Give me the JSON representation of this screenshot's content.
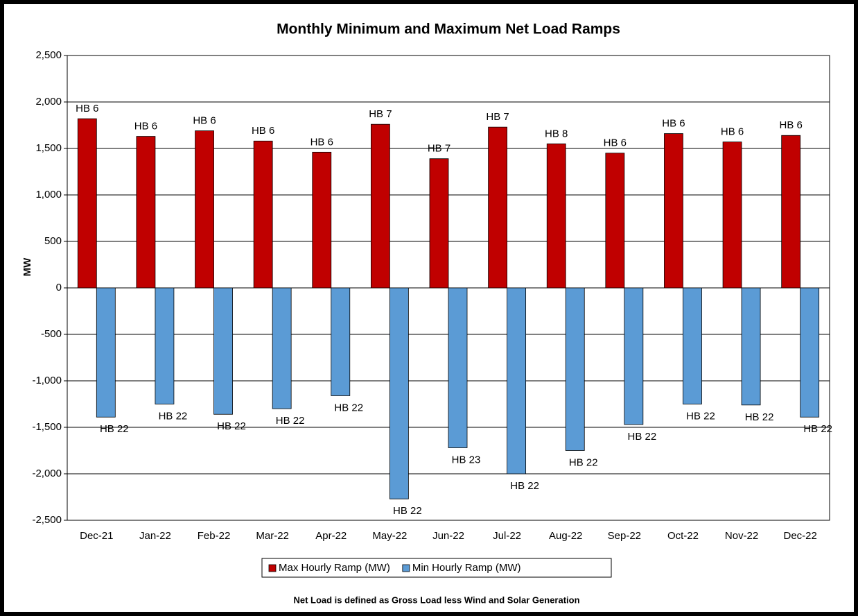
{
  "chart_data": {
    "type": "bar",
    "title": "Monthly Minimum and Maximum Net Load Ramps",
    "y_label": "MW",
    "footnote": "Net Load is defined as Gross Load less Wind and Solar Generation",
    "categories": [
      "Dec-21",
      "Jan-22",
      "Feb-22",
      "Mar-22",
      "Apr-22",
      "May-22",
      "Jun-22",
      "Jul-22",
      "Aug-22",
      "Sep-22",
      "Oct-22",
      "Nov-22",
      "Dec-22"
    ],
    "series": [
      {
        "name": "Max Hourly Ramp (MW)",
        "color": "#c00000",
        "values": [
          1820,
          1630,
          1690,
          1580,
          1460,
          1760,
          1390,
          1730,
          1550,
          1450,
          1660,
          1570,
          1640
        ],
        "annotations": [
          "HB 6",
          "HB 6",
          "HB 6",
          "HB 6",
          "HB 6",
          "HB 7",
          "HB 7",
          "HB 7",
          "HB 8",
          "HB 6",
          "HB 6",
          "HB 6",
          "HB 6"
        ]
      },
      {
        "name": "Min Hourly Ramp (MW)",
        "color": "#5b9bd5",
        "values": [
          -1390,
          -1250,
          -1360,
          -1300,
          -1160,
          -2270,
          -1720,
          -2000,
          -1750,
          -1470,
          -1250,
          -1260,
          -1390
        ],
        "annotations": [
          "HB 22",
          "HB 22",
          "HB 22",
          "HB 22",
          "HB 22",
          "HB 22",
          "HB 23",
          "HB 22",
          "HB 22",
          "HB 22",
          "HB 22",
          "HB 22",
          "HB 22"
        ]
      }
    ],
    "ylim": [
      -2500,
      2500
    ],
    "yticks": [
      {
        "value": 2500,
        "label": "2,500"
      },
      {
        "value": 2000,
        "label": "2,000"
      },
      {
        "value": 1500,
        "label": "1,500"
      },
      {
        "value": 1000,
        "label": "1,000"
      },
      500,
      0,
      -500,
      {
        "value": -1000,
        "label": "-1,000"
      },
      {
        "value": -1500,
        "label": "-1,500"
      },
      {
        "value": -2000,
        "label": "-2,000"
      },
      {
        "value": -2500,
        "label": "-2,500"
      }
    ],
    "grid": true,
    "legend": "bottom"
  }
}
